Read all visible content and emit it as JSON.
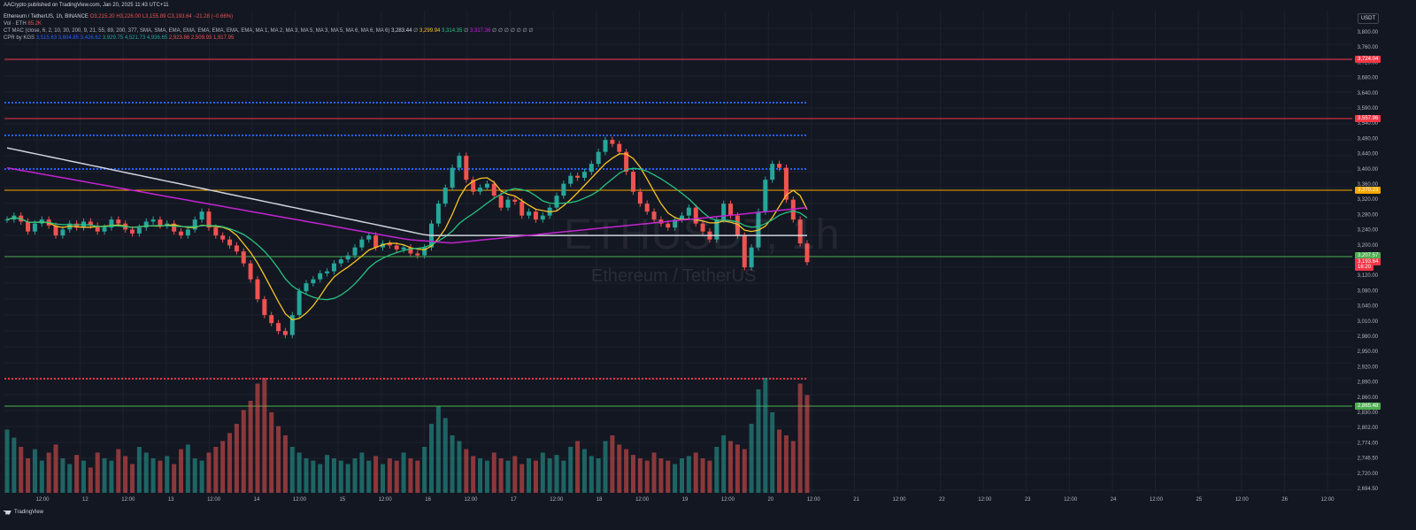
{
  "header": {
    "published": "AACrypto published on TradingView.com, Jan 20, 2025 11:43 UTC+11",
    "symbol_line": "Ethereum / TetherUS, 1h, BINANCE",
    "ohlc": {
      "o": "O3,215.20",
      "h": "H3,226.00",
      "l": "L3,155.89",
      "c": "C3,193.64",
      "chg": "−21.28 (−0.66%)"
    },
    "vol_label": "Vol · ETH",
    "vol_value": "85.2K",
    "ma_label": "CT MAC (close, 6, 2, 10, 30, 200, 9, 21, 55, 89, 200, 377, SMA, SMA, EMA, EMA, EMA, EMA, EMA, EMA, MA 1, MA 2, MA 3, MA 5, MA 3, MA 5, MA 6, MA 6, MA 6)",
    "ma_values": [
      "3,283.44",
      "∅",
      "3,299.94",
      "3,314.35",
      "∅",
      "3,317.36",
      "∅ ∅ ∅ ∅ ∅ ∅ ∅"
    ],
    "cpr_label": "CPR by KGS",
    "cpr_values": [
      "3,515.63",
      "3,604.85",
      "3,426.62",
      "3,929.75",
      "4,521.73",
      "4,936.65",
      "2,923.86",
      "2,509.93",
      "1,917.95"
    ]
  },
  "currency_button": "USDT",
  "watermark": {
    "symbol": "ETHUSDT, 1h",
    "name": "Ethereum / TetherUS"
  },
  "footer_brand": "TradingView",
  "price_axis": {
    "ticks": [
      "3,800.00",
      "3,760.00",
      "3,720.00",
      "3,680.00",
      "3,640.00",
      "3,590.00",
      "3,540.00",
      "3,490.00",
      "3,440.00",
      "3,400.00",
      "3,360.00",
      "3,320.00",
      "3,280.00",
      "3,240.00",
      "3,200.00",
      "3,160.00",
      "3,120.00",
      "3,080.00",
      "3,040.00",
      "3,010.00",
      "2,980.00",
      "2,950.00",
      "2,920.00",
      "2,890.00",
      "2,860.00",
      "2,830.00",
      "2,802.00",
      "2,774.00",
      "2,746.50",
      "2,720.00",
      "2,694.50"
    ]
  },
  "price_labels": [
    {
      "text": "3,724.04",
      "color": "#f23645"
    },
    {
      "text": "3,557.96",
      "color": "#f23645"
    },
    {
      "text": "3,370.23",
      "color": "#f7a600"
    },
    {
      "text": "3,207.57",
      "color": "#4caf50"
    },
    {
      "text": "3,193.64",
      "color": "#f23645"
    },
    {
      "text": "16:20",
      "color": "#f23645"
    },
    {
      "text": "2,865.48",
      "color": "#4caf50"
    }
  ],
  "time_axis": [
    "12:00",
    "12",
    "12:00",
    "13",
    "12:00",
    "14",
    "12:00",
    "15",
    "12:00",
    "16",
    "12:00",
    "17",
    "12:00",
    "18",
    "12:00",
    "19",
    "12:00",
    "20",
    "12:00",
    "21",
    "12:00",
    "22",
    "12:00",
    "23",
    "12:00",
    "24",
    "12:00",
    "25",
    "12:00",
    "26",
    "12:00"
  ],
  "colors": {
    "bg": "#131722",
    "up": "#26a69a",
    "down": "#ef5350",
    "grid": "#1e222d",
    "ma_white": "#d1d4dc",
    "ma_magenta": "#c224d1",
    "ma_green": "#26c281",
    "ma_yellow": "#f7c325",
    "cpr_blue": "#2962ff",
    "cpr_red": "#f23645"
  },
  "levels": [
    {
      "price": 3724.04,
      "color": "#f23645",
      "style": "solid"
    },
    {
      "price": 3604.85,
      "color": "#2962ff",
      "style": "dotted"
    },
    {
      "price": 3557.96,
      "color": "#f23645",
      "style": "solid"
    },
    {
      "price": 3515.63,
      "color": "#2962ff",
      "style": "dotted"
    },
    {
      "price": 3426.62,
      "color": "#2962ff",
      "style": "dotted"
    },
    {
      "price": 3370.23,
      "color": "#f7a600",
      "style": "solid"
    },
    {
      "price": 3207.57,
      "color": "#4caf50",
      "style": "solid"
    },
    {
      "price": 2923.86,
      "color": "#f23645",
      "style": "dotted"
    },
    {
      "price": 2865.48,
      "color": "#4caf50",
      "style": "solid"
    }
  ],
  "chart_data": {
    "type": "candlestick",
    "price_range": [
      2680,
      3820
    ],
    "candles_close": [
      3300,
      3310,
      3295,
      3270,
      3290,
      3300,
      3285,
      3260,
      3275,
      3290,
      3280,
      3295,
      3285,
      3270,
      3280,
      3300,
      3290,
      3275,
      3265,
      3280,
      3295,
      3300,
      3285,
      3290,
      3270,
      3260,
      3275,
      3300,
      3320,
      3280,
      3260,
      3250,
      3235,
      3220,
      3190,
      3150,
      3100,
      3060,
      3040,
      3020,
      3010,
      3060,
      3120,
      3140,
      3150,
      3165,
      3170,
      3190,
      3200,
      3210,
      3230,
      3250,
      3260,
      3230,
      3240,
      3235,
      3225,
      3230,
      3215,
      3210,
      3230,
      3290,
      3340,
      3380,
      3430,
      3460,
      3400,
      3370,
      3380,
      3390,
      3360,
      3330,
      3350,
      3345,
      3310,
      3320,
      3300,
      3310,
      3330,
      3360,
      3390,
      3410,
      3405,
      3420,
      3440,
      3470,
      3500,
      3490,
      3470,
      3420,
      3370,
      3340,
      3320,
      3300,
      3290,
      3280,
      3300,
      3310,
      3330,
      3290,
      3270,
      3250,
      3300,
      3340,
      3310,
      3260,
      3180,
      3230,
      3320,
      3400,
      3440,
      3430,
      3350,
      3300,
      3240,
      3193
    ],
    "volume": [
      55,
      48,
      40,
      30,
      38,
      28,
      35,
      42,
      30,
      25,
      33,
      28,
      22,
      35,
      30,
      28,
      38,
      32,
      25,
      40,
      35,
      30,
      28,
      32,
      25,
      38,
      42,
      30,
      28,
      35,
      40,
      45,
      52,
      60,
      72,
      80,
      95,
      100,
      70,
      58,
      50,
      40,
      35,
      30,
      28,
      25,
      33,
      30,
      28,
      25,
      30,
      35,
      28,
      32,
      25,
      30,
      28,
      35,
      30,
      28,
      40,
      60,
      75,
      65,
      50,
      45,
      38,
      32,
      30,
      28,
      35,
      30,
      28,
      32,
      25,
      30,
      28,
      35,
      30,
      33,
      28,
      40,
      45,
      38,
      32,
      30,
      45,
      50,
      42,
      38,
      33,
      30,
      28,
      35,
      30,
      28,
      25,
      30,
      32,
      35,
      30,
      28,
      40,
      50,
      45,
      42,
      38,
      60,
      90,
      100,
      70,
      55,
      50,
      45,
      95,
      85
    ]
  }
}
